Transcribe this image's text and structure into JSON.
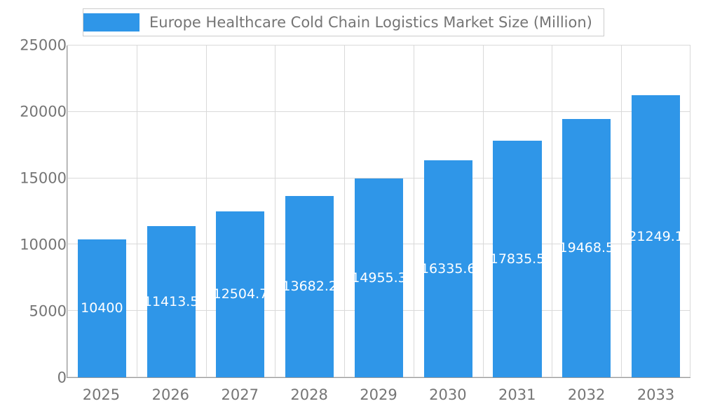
{
  "chart_data": {
    "type": "bar",
    "title": "Europe Healthcare Cold Chain Logistics Market Size (Million)",
    "categories": [
      "2025",
      "2026",
      "2027",
      "2028",
      "2029",
      "2030",
      "2031",
      "2032",
      "2033"
    ],
    "values": [
      10400,
      11413.5,
      12504.7,
      13682.2,
      14955.3,
      16335.6,
      17835.5,
      19468.5,
      21249.1
    ],
    "value_labels": [
      "10400",
      "11413.5",
      "12504.7",
      "13682.2",
      "14955.3",
      "16335.6",
      "17835.5",
      "19468.5",
      "21249.1"
    ],
    "xlabel": "",
    "ylabel": "",
    "ylim": [
      0,
      25000
    ],
    "yticks": [
      0,
      5000,
      10000,
      15000,
      20000,
      25000
    ],
    "grid": true,
    "legend_position": "top-left",
    "colors": {
      "bar": "#2f96e8",
      "grid": "#d9d9d9",
      "axis_line": "#9a9a9a",
      "axis_text": "#757575",
      "title_text": "#757575",
      "value_label_text": "#ffffff",
      "background": "#ffffff",
      "legend_border": "#cccccc"
    }
  }
}
